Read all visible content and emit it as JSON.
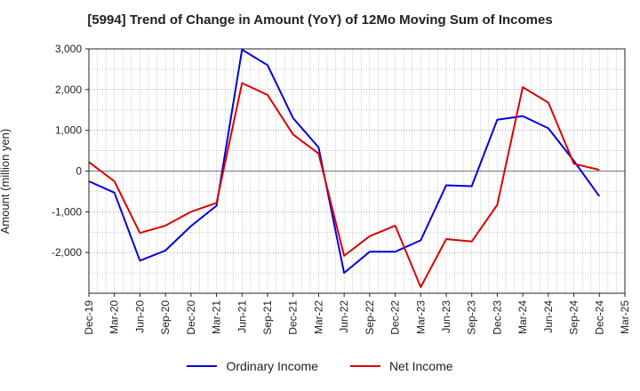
{
  "chart_data": {
    "type": "line",
    "title": "[5994]  Trend of Change in Amount (YoY) of 12Mo Moving Sum of Incomes",
    "ylabel": "Amount (million yen)",
    "xlabel": "",
    "ylim": [
      -3000,
      3000
    ],
    "yticks": [
      3000,
      2000,
      1000,
      0,
      -1000,
      -2000
    ],
    "ytick_labels": [
      "3,000",
      "2,000",
      "1,000",
      "0",
      "-1,000",
      "-2,000"
    ],
    "categories": [
      "Dec-19",
      "Mar-20",
      "Jun-20",
      "Sep-20",
      "Dec-20",
      "Mar-21",
      "Jun-21",
      "Sep-21",
      "Dec-21",
      "Mar-22",
      "Jun-22",
      "Sep-22",
      "Dec-22",
      "Mar-23",
      "Jun-23",
      "Sep-23",
      "Dec-23",
      "Mar-24",
      "Jun-24",
      "Sep-24",
      "Dec-24",
      "Mar-25"
    ],
    "grid": true,
    "legend_position": "bottom",
    "series": [
      {
        "name": "Ordinary Income",
        "color": "#0000dd",
        "values": [
          -250,
          -530,
          -2200,
          -1950,
          -1350,
          -850,
          2980,
          2600,
          1300,
          580,
          -2500,
          -1980,
          -1980,
          -1700,
          -350,
          -370,
          1260,
          1350,
          1050,
          250,
          -620,
          null
        ]
      },
      {
        "name": "Net Income",
        "color": "#dd0000",
        "values": [
          220,
          -250,
          -1520,
          -1340,
          -1000,
          -780,
          2160,
          1870,
          900,
          430,
          -2080,
          -1600,
          -1340,
          -2850,
          -1670,
          -1730,
          -830,
          2060,
          1680,
          180,
          30,
          null
        ]
      }
    ]
  }
}
